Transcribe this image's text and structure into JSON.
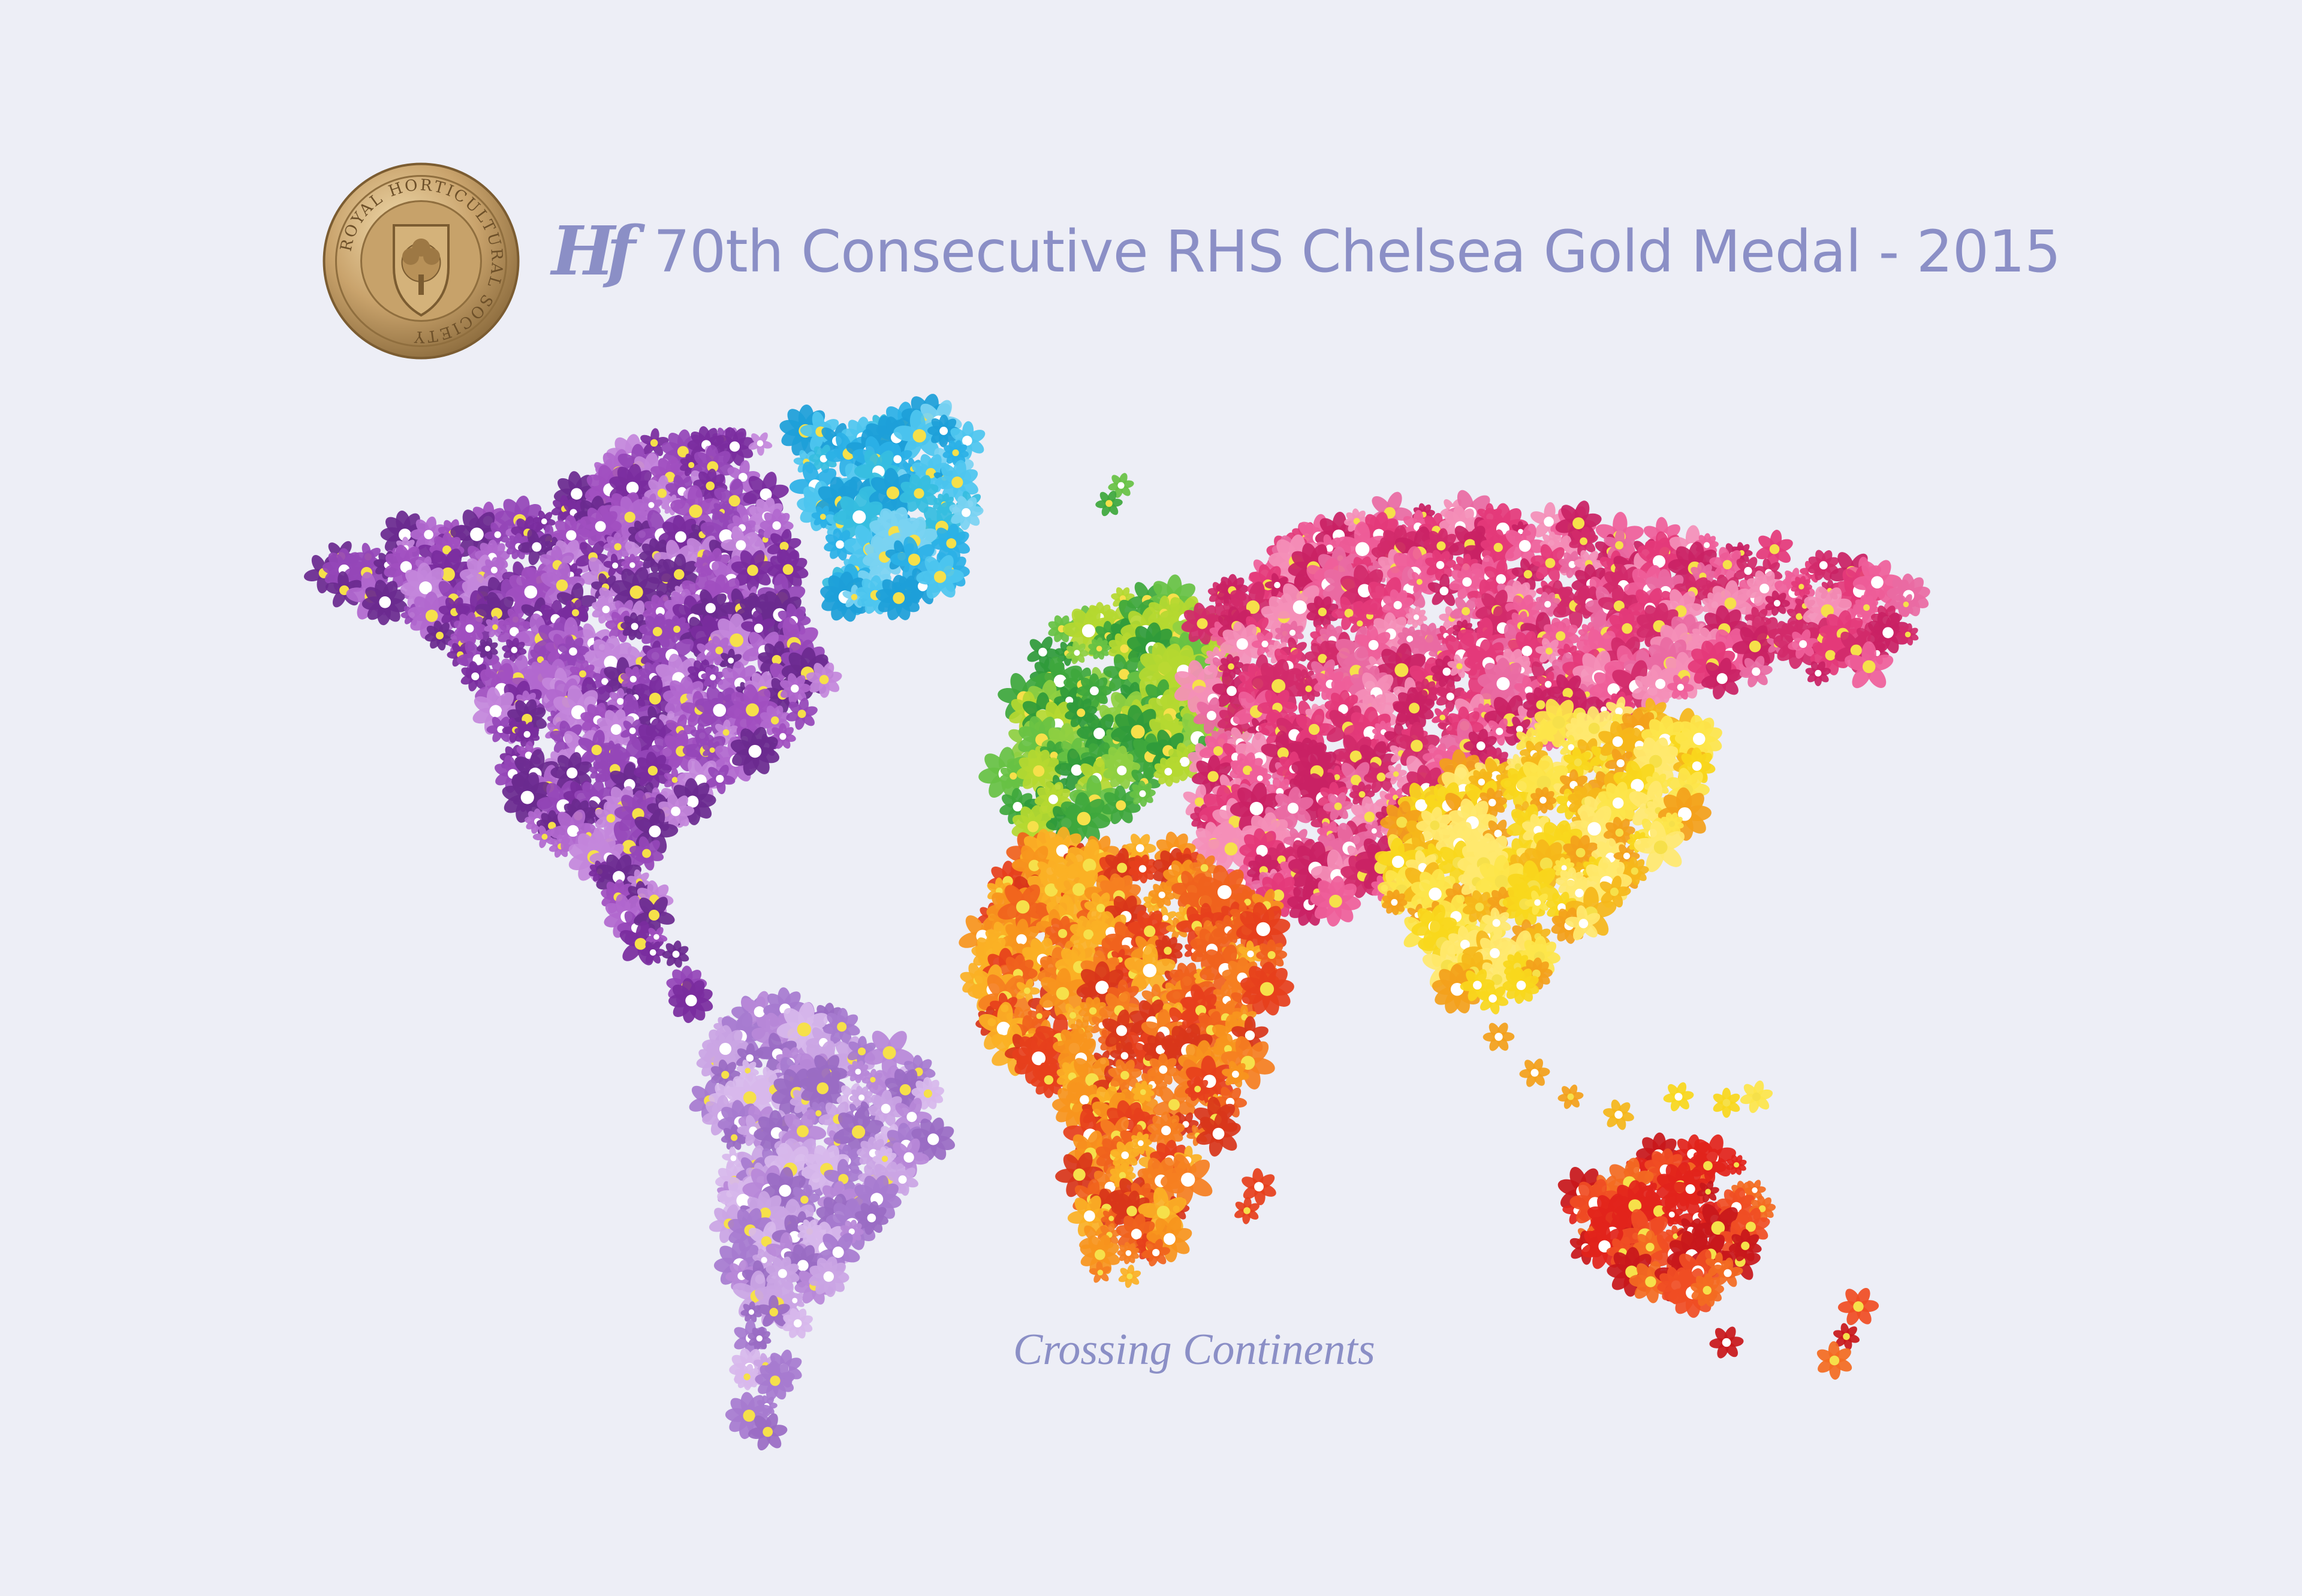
{
  "header": {
    "brand_mark": "Hf",
    "title": "70th Consecutive RHS Chelsea Gold Medal - 2015"
  },
  "medal": {
    "ring_text": "ROYAL HORTICULTURAL SOCIETY",
    "colors": {
      "gold": "#c6a06a",
      "gold_dark": "#8a6a3c",
      "gold_light": "#e9d2a4"
    }
  },
  "caption": "Crossing Continents",
  "colors": {
    "background": "#edeef6",
    "text": "#8b8fc6",
    "north_america": "#8a3ab0",
    "south_america": "#b483d1",
    "greenland": "#38b6e4",
    "europe": "#4db64b",
    "africa": "#f0671f",
    "asia_north": "#e6437e",
    "asia_south": "#f7d51a",
    "australia": "#e2231b"
  },
  "map_regions": [
    {
      "name": "north-america",
      "colors": [
        "#7a2c9e",
        "#9446b8",
        "#b168cf",
        "#6b2a8f",
        "#a04fbf",
        "#c487dc"
      ]
    },
    {
      "name": "greenland",
      "colors": [
        "#2bb0e6",
        "#4ec6ef",
        "#1d9fd8",
        "#7ad3f2",
        "#36bde0"
      ]
    },
    {
      "name": "south-america",
      "colors": [
        "#b888d8",
        "#9a6cc4",
        "#caa5e4",
        "#a77bd0",
        "#d7b8ec"
      ]
    },
    {
      "name": "europe",
      "colors": [
        "#3ea83c",
        "#67c244",
        "#8fd042",
        "#2f9b3a",
        "#b5d830"
      ]
    },
    {
      "name": "asia-north",
      "colors": [
        "#e4397a",
        "#ef5f9a",
        "#d22a6a",
        "#f48fb8",
        "#c92164",
        "#e96aa3"
      ]
    },
    {
      "name": "asia-south",
      "colors": [
        "#f9d71c",
        "#f5b71a",
        "#fde54a",
        "#f3a01b",
        "#ffe86e"
      ]
    },
    {
      "name": "africa",
      "colors": [
        "#f0621d",
        "#f7941d",
        "#e6401c",
        "#fbb025",
        "#f57f20",
        "#d8361a"
      ]
    },
    {
      "name": "australia",
      "colors": [
        "#e2231b",
        "#f04e23",
        "#c8181b",
        "#f36c21"
      ]
    }
  ]
}
